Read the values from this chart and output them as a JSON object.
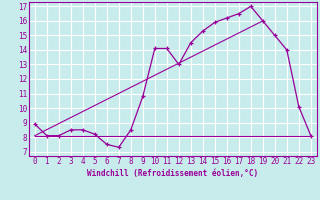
{
  "xlabel": "Windchill (Refroidissement éolien,°C)",
  "background_color": "#c8ecec",
  "grid_color": "#ffffff",
  "line_color": "#990099",
  "xlim": [
    -0.5,
    23.5
  ],
  "ylim": [
    6.7,
    17.3
  ],
  "xticks": [
    0,
    1,
    2,
    3,
    4,
    5,
    6,
    7,
    8,
    9,
    10,
    11,
    12,
    13,
    14,
    15,
    16,
    17,
    18,
    19,
    20,
    21,
    22,
    23
  ],
  "yticks": [
    7,
    8,
    9,
    10,
    11,
    12,
    13,
    14,
    15,
    16,
    17
  ],
  "line1_x": [
    0,
    1,
    2,
    3,
    4,
    5,
    6,
    7,
    8,
    9,
    10,
    11,
    12,
    13,
    14,
    15,
    16,
    17,
    18,
    19,
    20,
    21,
    22,
    23
  ],
  "line1_y": [
    8.9,
    8.1,
    8.1,
    8.5,
    8.5,
    8.2,
    7.5,
    7.3,
    8.5,
    10.8,
    14.1,
    14.1,
    13.0,
    14.5,
    15.3,
    15.9,
    16.2,
    16.5,
    17.0,
    16.0,
    15.0,
    14.0,
    10.1,
    8.1
  ],
  "line2_x": [
    0,
    23
  ],
  "line2_y": [
    8.1,
    8.1
  ],
  "line3_x": [
    0,
    19
  ],
  "line3_y": [
    8.1,
    16.0
  ],
  "tick_fontsize": 5.5,
  "xlabel_fontsize": 5.5
}
